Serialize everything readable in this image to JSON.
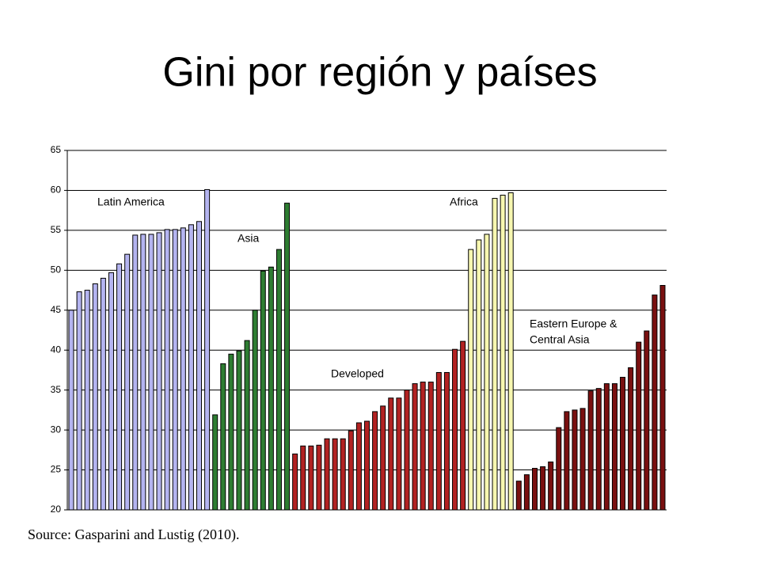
{
  "title": "Gini por región y países",
  "source": "Source: Gasparini and Lustig (2010).",
  "chart_data": {
    "type": "bar",
    "ylim": [
      20,
      65
    ],
    "yticks": [
      20,
      25,
      30,
      35,
      40,
      45,
      50,
      55,
      60,
      65
    ],
    "grid": true,
    "annotations": [
      "Latin America",
      "Asia",
      "Developed",
      "Africa",
      "Eastern Europe &",
      "Central Asia"
    ],
    "series": [
      {
        "color": "#b4b4f0",
        "values": [
          45,
          47.3,
          47.5,
          48.3,
          49,
          49.7,
          50.8,
          52,
          54.4,
          54.5,
          54.5,
          54.7,
          55.1,
          55.1,
          55.3,
          55.7,
          56.1,
          60.1
        ]
      },
      {
        "color": "#2e7d32",
        "values": [
          31.9,
          38.3,
          39.5,
          39.9,
          41.2,
          45,
          49.9,
          50.4,
          52.6,
          58.4
        ]
      },
      {
        "color": "#b22222",
        "values": [
          27,
          28,
          28,
          28.1,
          28.9,
          28.9,
          28.9,
          29.9,
          30.9,
          31.1,
          32.3,
          33,
          34,
          34,
          35,
          35.8,
          36,
          36,
          37.2,
          37.2,
          40.1,
          41.1
        ]
      },
      {
        "color": "#f7f7b0",
        "values": [
          52.6,
          53.8,
          54.5,
          59,
          59.4,
          59.7
        ]
      },
      {
        "color": "#7a1010",
        "values": [
          23.6,
          24.4,
          25.2,
          25.4,
          26,
          30.3,
          32.3,
          32.5,
          32.7,
          34.9,
          35.2,
          35.8,
          35.8,
          36.6,
          37.8,
          41,
          42.4,
          46.9,
          48.1
        ]
      }
    ]
  }
}
